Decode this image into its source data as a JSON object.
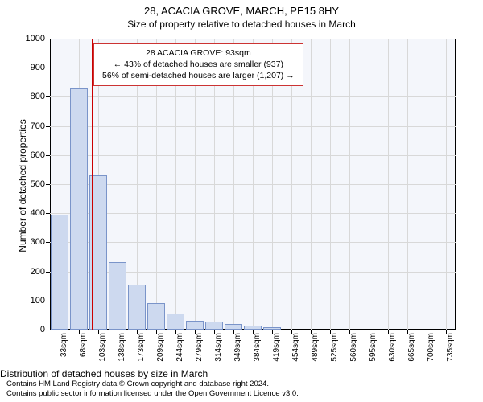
{
  "titles": {
    "main": "28, ACACIA GROVE, MARCH, PE15 8HY",
    "sub": "Size of property relative to detached houses in March"
  },
  "axes": {
    "y_label": "Number of detached properties",
    "x_label": "Distribution of detached houses by size in March"
  },
  "chart": {
    "type": "histogram",
    "background_color": "#f4f6fb",
    "grid_color": "#d8d8d8",
    "bar_fill": "#cdd9ef",
    "bar_stroke": "#7a94c9",
    "marker_color": "#cc0000",
    "ylim": [
      0,
      1000
    ],
    "ytick_step": 100,
    "yticks": [
      0,
      100,
      200,
      300,
      400,
      500,
      600,
      700,
      800,
      900,
      1000
    ],
    "x_ticks": [
      "33sqm",
      "68sqm",
      "103sqm",
      "138sqm",
      "173sqm",
      "209sqm",
      "244sqm",
      "279sqm",
      "314sqm",
      "349sqm",
      "384sqm",
      "419sqm",
      "454sqm",
      "489sqm",
      "525sqm",
      "560sqm",
      "595sqm",
      "630sqm",
      "665sqm",
      "700sqm",
      "735sqm"
    ],
    "bars": [
      {
        "i": 0,
        "v": 395
      },
      {
        "i": 1,
        "v": 830
      },
      {
        "i": 2,
        "v": 530
      },
      {
        "i": 3,
        "v": 232
      },
      {
        "i": 4,
        "v": 155
      },
      {
        "i": 5,
        "v": 90
      },
      {
        "i": 6,
        "v": 55
      },
      {
        "i": 7,
        "v": 30
      },
      {
        "i": 8,
        "v": 28
      },
      {
        "i": 9,
        "v": 18
      },
      {
        "i": 10,
        "v": 15
      },
      {
        "i": 11,
        "v": 8
      }
    ],
    "marker_position": 1.72
  },
  "annotation": {
    "line1": "28 ACACIA GROVE: 93sqm",
    "line2": "← 43% of detached houses are smaller (937)",
    "line3": "56% of semi-detached houses are larger (1,207) →"
  },
  "footer": {
    "line1": "Contains HM Land Registry data © Crown copyright and database right 2024.",
    "line2": "Contains public sector information licensed under the Open Government Licence v3.0."
  }
}
